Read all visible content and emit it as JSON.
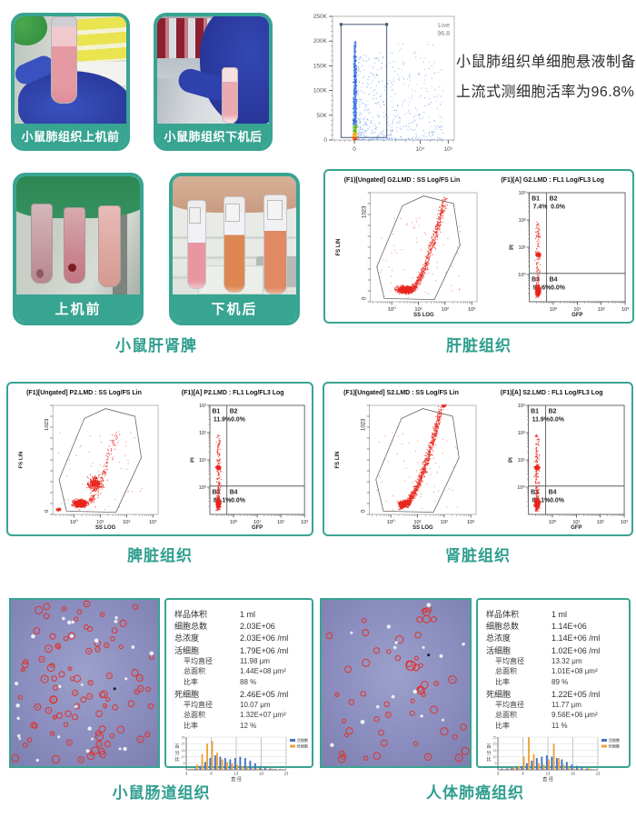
{
  "colors": {
    "teal": "#38a492",
    "scatter_red": "#e8251d",
    "hist_blue": "#4573c4",
    "hist_orange": "#f0a33b",
    "micro_background": "#8a8dbd",
    "live_hot": [
      "#e84e1d",
      "#f6b41c",
      "#66bb2e"
    ],
    "live_blue": "#4079e0"
  },
  "top": {
    "photo_before": {
      "label": "小鼠肺组织上机前"
    },
    "photo_after": {
      "label": "小鼠肺组织下机后"
    },
    "caption_line1": "小鼠肺组织单细胞悬液制备",
    "caption_line2": "上流式测细胞活率为96.8%",
    "live_plot": {
      "gate_name": "Live",
      "gate_value": "96.8",
      "y_ticks": [
        "0",
        "50K",
        "100K",
        "150K",
        "200K",
        "250K"
      ],
      "x_ticks": [
        "0",
        "10⁴",
        "10⁵"
      ]
    }
  },
  "tissue_photos": {
    "before_label": "上机前",
    "after_label": "下机后",
    "caption": "小鼠肝肾脾"
  },
  "flow_axes": {
    "fs_label": "FS LIN",
    "ss_label": "SS LOG",
    "pi_label": "PI",
    "gfp_label": "GFP",
    "fs_max": "1023",
    "fs_min": "0",
    "log_ticks": [
      "10⁰",
      "10¹",
      "10²",
      "10³"
    ]
  },
  "flow_panels": [
    {
      "left_title": "(F1)[Ungated] G2.LMD : SS Log/FS Lin",
      "right_title": "(F1)[A] G2.LMD : FL1 Log/FL3 Log",
      "caption": "肝脏组织",
      "quadrants": [
        {
          "name": "B1",
          "value": "7.4%"
        },
        {
          "name": "B2",
          "value": "0.0%"
        },
        {
          "name": "B3",
          "value": "92.6%"
        },
        {
          "name": "B4",
          "value": "0.0%"
        }
      ]
    },
    {
      "left_title": "(F1)[Ungated] P2.LMD : SS Log/FS Lin",
      "right_title": "(F1)[A] P2.LMD : FL1 Log/FL3 Log",
      "caption": "脾脏组织",
      "quadrants": [
        {
          "name": "B1",
          "value": "11.9%"
        },
        {
          "name": "B2",
          "value": "0.0%"
        },
        {
          "name": "B3",
          "value": "88.1%"
        },
        {
          "name": "B4",
          "value": "0.0%"
        }
      ]
    },
    {
      "left_title": "(F1)[Ungated] S2.LMD : SS Log/FS Lin",
      "right_title": "(F1)[A] S2.LMD : FL1 Log/FL3 Log",
      "caption": "肾脏组织",
      "quadrants": [
        {
          "name": "B1",
          "value": "11.9%"
        },
        {
          "name": "B2",
          "value": "0.0%"
        },
        {
          "name": "B3",
          "value": "88.1%"
        },
        {
          "name": "B4",
          "value": "0.0%"
        }
      ]
    }
  ],
  "count_panels": [
    {
      "caption": "小鼠肠道组织",
      "rows": [
        {
          "label": "样品体积",
          "value": "1 ml",
          "indent": false
        },
        {
          "label": "细胞总数",
          "value": "2.03E+06",
          "indent": false
        },
        {
          "label": "总浓度",
          "value": "2.03E+06 /ml",
          "indent": false
        },
        {
          "label": "活细胞",
          "value": "1.79E+06 /ml",
          "indent": false
        },
        {
          "label": "平均直径",
          "value": "11.98 μm",
          "indent": true
        },
        {
          "label": "总面积",
          "value": "1.44E+08 μm²",
          "indent": true
        },
        {
          "label": "比率",
          "value": "88 %",
          "indent": true
        },
        {
          "label": "死细胞",
          "value": "2.46E+05 /ml",
          "indent": false
        },
        {
          "label": "平均直径",
          "value": "10.07 μm",
          "indent": true
        },
        {
          "label": "总面积",
          "value": "1.32E+07 μm²",
          "indent": true
        },
        {
          "label": "比率",
          "value": "12 %",
          "indent": true
        }
      ]
    },
    {
      "caption": "人体肺癌组织",
      "rows": [
        {
          "label": "样品体积",
          "value": "1 ml",
          "indent": false
        },
        {
          "label": "细胞总数",
          "value": "1.14E+06",
          "indent": false
        },
        {
          "label": "总浓度",
          "value": "1.14E+06 /ml",
          "indent": false
        },
        {
          "label": "活细胞",
          "value": "1.02E+06 /ml",
          "indent": false
        },
        {
          "label": "平均直径",
          "value": "13.32 μm",
          "indent": true
        },
        {
          "label": "总面积",
          "value": "1.01E+08 μm²",
          "indent": true
        },
        {
          "label": "比率",
          "value": "89 %",
          "indent": true
        },
        {
          "label": "死细胞",
          "value": "1.22E+05 /ml",
          "indent": false
        },
        {
          "label": "平均直径",
          "value": "11.77 μm",
          "indent": true
        },
        {
          "label": "总面积",
          "value": "9.56E+06 μm²",
          "indent": true
        },
        {
          "label": "比率",
          "value": "11 %",
          "indent": true
        }
      ]
    }
  ],
  "hist_common": {
    "ylabel": "百分比",
    "xlabel": "直 径",
    "x_ticks": [
      3,
      8,
      13,
      18,
      23
    ],
    "y_ticks": [
      0,
      5,
      10,
      15,
      20,
      25
    ],
    "legend": [
      {
        "label": "活细胞",
        "color": "#4573c4"
      },
      {
        "label": "死细胞",
        "color": "#f0a33b"
      }
    ]
  },
  "chart_data": [
    {
      "id": "lung_live_gate",
      "type": "scatter",
      "title": "",
      "gate": {
        "name": "Live",
        "percent": 96.8
      },
      "xlabel": "",
      "ylabel": "",
      "x_ticks": [
        "0",
        "10⁴",
        "10⁵"
      ],
      "y_ticks": [
        "0",
        "50K",
        "100K",
        "150K",
        "200K",
        "250K"
      ],
      "description": "density scatter, dense vertical column near 0 inside Live gate rectangle"
    },
    {
      "id": "liver_flow",
      "type": "scatter",
      "left_plot": {
        "title": "(F1)[Ungated] G2.LMD : SS Log/FS Lin",
        "xlabel": "SS LOG",
        "ylabel": "FS LIN",
        "y_range": [
          0,
          1023
        ],
        "x_ticks": [
          "10⁰",
          "10¹",
          "10²",
          "10³"
        ],
        "gate": "polygon"
      },
      "right_plot": {
        "title": "(F1)[A] G2.LMD : FL1 Log/FL3 Log",
        "xlabel": "GFP",
        "ylabel": "PI",
        "quadrants": {
          "B1": 7.4,
          "B2": 0.0,
          "B3": 92.6,
          "B4": 0.0
        }
      }
    },
    {
      "id": "spleen_flow",
      "type": "scatter",
      "left_plot": {
        "title": "(F1)[Ungated] P2.LMD : SS Log/FS Lin",
        "xlabel": "SS LOG",
        "ylabel": "FS LIN",
        "y_range": [
          0,
          1023
        ],
        "x_ticks": [
          "10⁰",
          "10¹",
          "10²",
          "10³"
        ],
        "gate": "polygon"
      },
      "right_plot": {
        "title": "(F1)[A] P2.LMD : FL1 Log/FL3 Log",
        "xlabel": "GFP",
        "ylabel": "PI",
        "quadrants": {
          "B1": 11.9,
          "B2": 0.0,
          "B3": 88.1,
          "B4": 0.0
        }
      }
    },
    {
      "id": "kidney_flow",
      "type": "scatter",
      "left_plot": {
        "title": "(F1)[Ungated] S2.LMD : SS Log/FS Lin",
        "xlabel": "SS LOG",
        "ylabel": "FS LIN",
        "y_range": [
          0,
          1023
        ],
        "x_ticks": [
          "10⁰",
          "10¹",
          "10²",
          "10³"
        ],
        "gate": "polygon"
      },
      "right_plot": {
        "title": "(F1)[A] S2.LMD : FL1 Log/FL3 Log",
        "xlabel": "GFP",
        "ylabel": "PI",
        "quadrants": {
          "B1": 11.9,
          "B2": 0.0,
          "B3": 88.1,
          "B4": 0.0
        }
      }
    },
    {
      "id": "intestine_size_hist",
      "type": "bar",
      "xlabel": "直 径",
      "ylabel": "百分比",
      "x": [
        4,
        5,
        6,
        7,
        8,
        9,
        10,
        11,
        12,
        13,
        14,
        15,
        16,
        17,
        18,
        19,
        20,
        21,
        22
      ],
      "series": [
        {
          "name": "活细胞",
          "color": "#4573c4",
          "values": [
            0.5,
            1,
            3,
            6,
            9,
            11,
            10,
            9,
            8,
            9,
            10,
            9,
            7,
            5,
            3,
            2,
            1,
            0.7,
            0.5
          ]
        },
        {
          "name": "死细胞",
          "color": "#f0a33b",
          "values": [
            1,
            4,
            12,
            20,
            22,
            13,
            8,
            6,
            5,
            4,
            3,
            2,
            1.5,
            1,
            0.7,
            0.5,
            1,
            0.3,
            0.6
          ]
        }
      ],
      "x_ticks": [
        3,
        8,
        13,
        18,
        23
      ],
      "ylim": [
        0,
        25
      ],
      "grid": true,
      "legend_position": "top-right"
    },
    {
      "id": "lung_cancer_size_hist",
      "type": "bar",
      "xlabel": "直 径",
      "ylabel": "百分比",
      "x": [
        4,
        5,
        6,
        7,
        8,
        9,
        10,
        11,
        12,
        13,
        14,
        15,
        16,
        17,
        18,
        19,
        20,
        21,
        22
      ],
      "series": [
        {
          "name": "活细胞",
          "color": "#4573c4",
          "values": [
            1,
            1,
            2,
            2,
            3,
            5,
            7,
            9,
            10,
            11,
            10,
            9,
            8,
            6,
            4,
            3,
            2,
            1,
            0.5
          ]
        },
        {
          "name": "死细胞",
          "color": "#f0a33b",
          "values": [
            0.5,
            1,
            2,
            3,
            10,
            25,
            12,
            5,
            4,
            8,
            20,
            9,
            4,
            2,
            1,
            1,
            0.5,
            1.2,
            0.4
          ]
        }
      ],
      "x_ticks": [
        3,
        8,
        13,
        18,
        23
      ],
      "ylim": [
        0,
        25
      ],
      "grid": true,
      "legend_position": "top-right"
    }
  ]
}
